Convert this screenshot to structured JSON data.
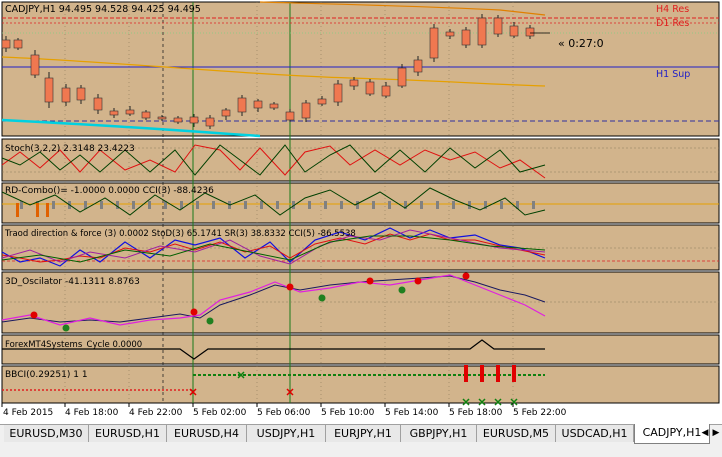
{
  "chart": {
    "title": "CADJPY,H1  94.495 94.528 94.425 94.495",
    "countdown": "« 0:27:0",
    "levels": {
      "h4_res": "H4 Res",
      "d1_res": "D1 Res",
      "h1_sup": "H1 Sup"
    },
    "panels": [
      {
        "label": "Stoch(3,2,2) 2.3148 23.4223"
      },
      {
        "label": "RD-Combo()= -1.0000 0.0000  CCI(3) -88.4236"
      },
      {
        "label": "Traod direction & force (3)  0.0002  StoD(3)  65.1741  SR(3) 38.8332  CCI(5) -86.5538"
      },
      {
        "label": "3D_Oscilator -41.1311 8.8763"
      },
      {
        "label": "ForexMT4Systems_Cycle 0.0000"
      },
      {
        "label": "BBCI(0.29251) 1 1"
      }
    ],
    "time_labels": [
      "4 Feb 2015",
      "4 Feb 18:00",
      "4 Feb 22:00",
      "5 Feb 02:00",
      "5 Feb 06:00",
      "5 Feb 10:00",
      "5 Feb 14:00",
      "5 Feb 18:00",
      "5 Feb 22:00"
    ]
  },
  "tabs": [
    {
      "label": "EURUSD,M30",
      "active": false
    },
    {
      "label": "EURUSD,H1",
      "active": false
    },
    {
      "label": "EURUSD,H4",
      "active": false
    },
    {
      "label": "USDJPY,H1",
      "active": false
    },
    {
      "label": "EURJPY,H1",
      "active": false
    },
    {
      "label": "GBPJPY,H1",
      "active": false
    },
    {
      "label": "EURUSD,M5",
      "active": false
    },
    {
      "label": "USDCAD,H1",
      "active": false
    },
    {
      "label": "CADJPY,H1",
      "active": true
    }
  ],
  "tab_scroll": {
    "left_icon": "arrow-left-icon",
    "right_icon": "arrow-right-icon"
  },
  "colors": {
    "bg": "#d2b48c",
    "bull": "#5a8a1e",
    "bear": "#f07850",
    "support": "#2020c8",
    "resistance": "#e02020"
  }
}
